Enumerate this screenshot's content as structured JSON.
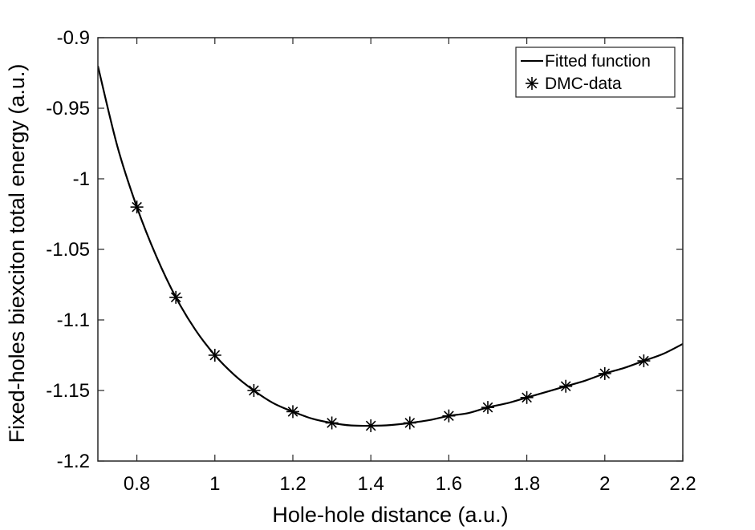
{
  "chart_data": {
    "type": "line",
    "title": "",
    "xlabel": "Hole-hole distance (a.u.)",
    "ylabel": "Fixed-holes biexciton total energy (a.u.)",
    "xlim": [
      0.7,
      2.2
    ],
    "ylim": [
      -1.2,
      -0.9
    ],
    "xticks": [
      0.8,
      1,
      1.2,
      1.4,
      1.6,
      1.8,
      2,
      2.2
    ],
    "xtick_labels": [
      "0.8",
      "1",
      "1.2",
      "1.4",
      "1.6",
      "1.8",
      "2",
      "2.2"
    ],
    "yticks": [
      -1.2,
      -1.15,
      -1.1,
      -1.05,
      -1,
      -0.95,
      -0.9
    ],
    "ytick_labels": [
      "-1.2",
      "-1.15",
      "-1.1",
      "-1.05",
      "-1",
      "-0.95",
      "-0.9"
    ],
    "grid": false,
    "legend_position": "top-right",
    "series": [
      {
        "name": "Fitted function",
        "style": "line",
        "color": "#000000",
        "x": [
          0.7,
          0.75,
          0.8,
          0.85,
          0.9,
          0.95,
          1.0,
          1.05,
          1.1,
          1.15,
          1.2,
          1.25,
          1.3,
          1.35,
          1.4,
          1.45,
          1.5,
          1.55,
          1.6,
          1.65,
          1.7,
          1.75,
          1.8,
          1.85,
          1.9,
          1.95,
          2.0,
          2.05,
          2.1,
          2.15,
          2.2
        ],
        "y": [
          -0.92,
          -0.977,
          -1.02,
          -1.055,
          -1.084,
          -1.107,
          -1.125,
          -1.139,
          -1.15,
          -1.159,
          -1.165,
          -1.17,
          -1.173,
          -1.1748,
          -1.175,
          -1.1745,
          -1.173,
          -1.171,
          -1.168,
          -1.166,
          -1.162,
          -1.159,
          -1.155,
          -1.151,
          -1.147,
          -1.143,
          -1.138,
          -1.134,
          -1.129,
          -1.124,
          -1.117
        ]
      },
      {
        "name": "DMC-data",
        "style": "markers",
        "marker": "asterisk",
        "color": "#000000",
        "x": [
          0.8,
          0.9,
          1.0,
          1.1,
          1.2,
          1.3,
          1.4,
          1.5,
          1.6,
          1.7,
          1.8,
          1.9,
          2.0,
          2.1
        ],
        "y": [
          -1.02,
          -1.084,
          -1.125,
          -1.15,
          -1.165,
          -1.173,
          -1.175,
          -1.173,
          -1.168,
          -1.162,
          -1.155,
          -1.147,
          -1.138,
          -1.129
        ]
      }
    ]
  }
}
